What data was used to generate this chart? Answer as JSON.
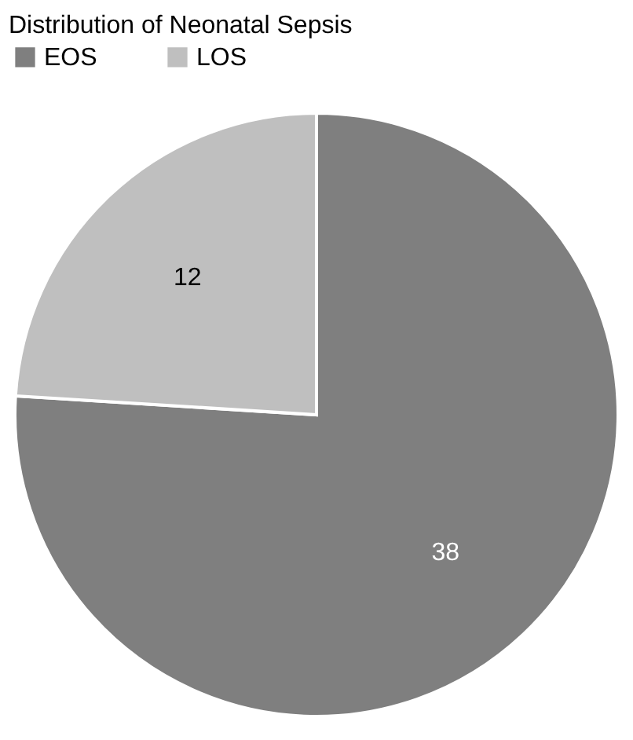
{
  "chart_data": {
    "type": "pie",
    "title": "Distribution of Neonatal Sepsis",
    "categories": [
      "EOS",
      "LOS"
    ],
    "values": [
      38,
      12
    ],
    "colors": [
      "#7f7f7f",
      "#bfbfbf"
    ],
    "data_labels": true,
    "legend": "top"
  }
}
